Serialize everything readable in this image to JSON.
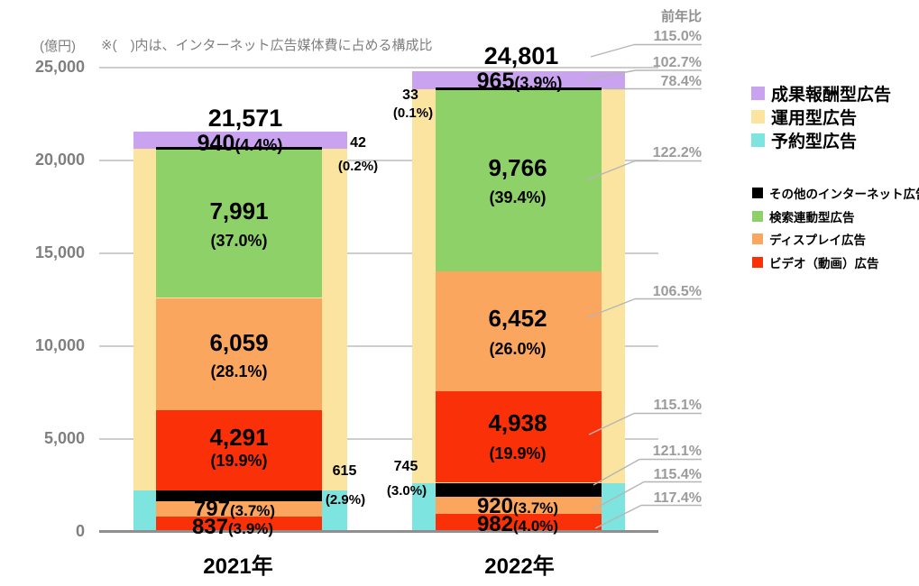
{
  "colors": {
    "red": "#F93008",
    "orange": "#FAA65E",
    "green": "#8FD169",
    "yellow": "#FBE3A0",
    "cyan": "#7EE4E0",
    "purple": "#C9A3F0",
    "black": "#000000",
    "grid": "#CDCDCD",
    "axis": "#8F8F8F",
    "muted_text": "#7F7F7F",
    "yoy_text": "#9B9B9B",
    "leader_line": "#B5B5B5"
  },
  "header": {
    "unit": "(億円)",
    "note": "※(　)内は、インターネット広告媒体費に占める構成比"
  },
  "axis": {
    "y_max": 25000,
    "y_ticks": [
      "25,000",
      "20,000",
      "15,000",
      "10,000",
      "5,000",
      "0"
    ],
    "gridline_values": [
      25000,
      20000,
      15000,
      10000,
      5000
    ],
    "x_labels": [
      "2021年",
      "2022年"
    ]
  },
  "legend": {
    "group1": [
      {
        "label": "成果報酬型広告",
        "color": "purple"
      },
      {
        "label": "運用型広告",
        "color": "yellow"
      },
      {
        "label": "予約型広告",
        "color": "cyan"
      }
    ],
    "group2": [
      {
        "label": "その他のインターネット広告",
        "color": "black"
      },
      {
        "label": "検索連動型広告",
        "color": "green"
      },
      {
        "label": "ディスプレイ広告",
        "color": "orange"
      },
      {
        "label": "ビデオ（動画）広告",
        "color": "red"
      }
    ]
  },
  "yoy": {
    "header": "前年比",
    "items": [
      {
        "label": "115.0%",
        "applies_to": "total"
      },
      {
        "label": "102.7%",
        "applies_to": "performance"
      },
      {
        "label": "78.4%",
        "applies_to": "black_top"
      },
      {
        "label": "122.2%",
        "applies_to": "green_main"
      },
      {
        "label": "106.5%",
        "applies_to": "orange_main"
      },
      {
        "label": "115.1%",
        "applies_to": "red_main"
      },
      {
        "label": "121.1%",
        "applies_to": "black_lower"
      },
      {
        "label": "115.4%",
        "applies_to": "orange_lower"
      },
      {
        "label": "117.4%",
        "applies_to": "red_lower"
      }
    ]
  },
  "chart_data": {
    "type": "bar",
    "unit": "億円",
    "categories": [
      "2021年",
      "2022年"
    ],
    "ylim": [
      0,
      25000
    ],
    "totals": {
      "y2021": {
        "value": 21571,
        "label": "21,571"
      },
      "y2022": {
        "value": 24801,
        "label": "24,801"
      }
    },
    "back": {
      "y2021": [
        {
          "id": "reserved",
          "color": "cyan",
          "value": 2249
        },
        {
          "id": "programmatic",
          "color": "yellow",
          "value": 18382
        },
        {
          "id": "performance",
          "color": "purple",
          "value": 940,
          "label": "940",
          "pct": "(4.4%)"
        }
      ],
      "y2022": [
        {
          "id": "reserved",
          "color": "cyan",
          "value": 2647
        },
        {
          "id": "programmatic",
          "color": "yellow",
          "value": 21189
        },
        {
          "id": "performance",
          "color": "purple",
          "value": 965,
          "label": "965",
          "pct": "(3.9%)"
        }
      ]
    },
    "front": {
      "y2021": [
        {
          "id": "red_lower",
          "color": "red",
          "value": 837,
          "label": "837",
          "pct": "(3.9%)"
        },
        {
          "id": "orange_lower",
          "color": "orange",
          "value": 797,
          "label": "797",
          "pct": "(3.7%)"
        },
        {
          "id": "black_lower",
          "color": "black",
          "value": 615,
          "label": "615",
          "pct": "(2.9%)"
        },
        {
          "id": "red_main",
          "color": "red",
          "value": 4291,
          "label": "4,291",
          "pct": "(19.9%)"
        },
        {
          "id": "orange_main",
          "color": "orange",
          "value": 6059,
          "label": "6,059",
          "pct": "(28.1%)"
        },
        {
          "id": "green_main",
          "color": "green",
          "value": 7991,
          "label": "7,991",
          "pct": "(37.0%)"
        },
        {
          "id": "black_top",
          "color": "black",
          "value": 42,
          "label": "42",
          "pct": "(0.2%)"
        }
      ],
      "y2022": [
        {
          "id": "red_lower",
          "color": "red",
          "value": 982,
          "label": "982",
          "pct": "(4.0%)"
        },
        {
          "id": "orange_lower",
          "color": "orange",
          "value": 920,
          "label": "920",
          "pct": "(3.7%)"
        },
        {
          "id": "black_lower",
          "color": "black",
          "value": 745,
          "label": "745",
          "pct": "(3.0%)"
        },
        {
          "id": "red_main",
          "color": "red",
          "value": 4938,
          "label": "4,938",
          "pct": "(19.9%)"
        },
        {
          "id": "orange_main",
          "color": "orange",
          "value": 6452,
          "label": "6,452",
          "pct": "(26.0%)"
        },
        {
          "id": "green_main",
          "color": "green",
          "value": 9766,
          "label": "9,766",
          "pct": "(39.4%)"
        },
        {
          "id": "black_top",
          "color": "black",
          "value": 33,
          "label": "33",
          "pct": "(0.1%)"
        }
      ]
    }
  }
}
